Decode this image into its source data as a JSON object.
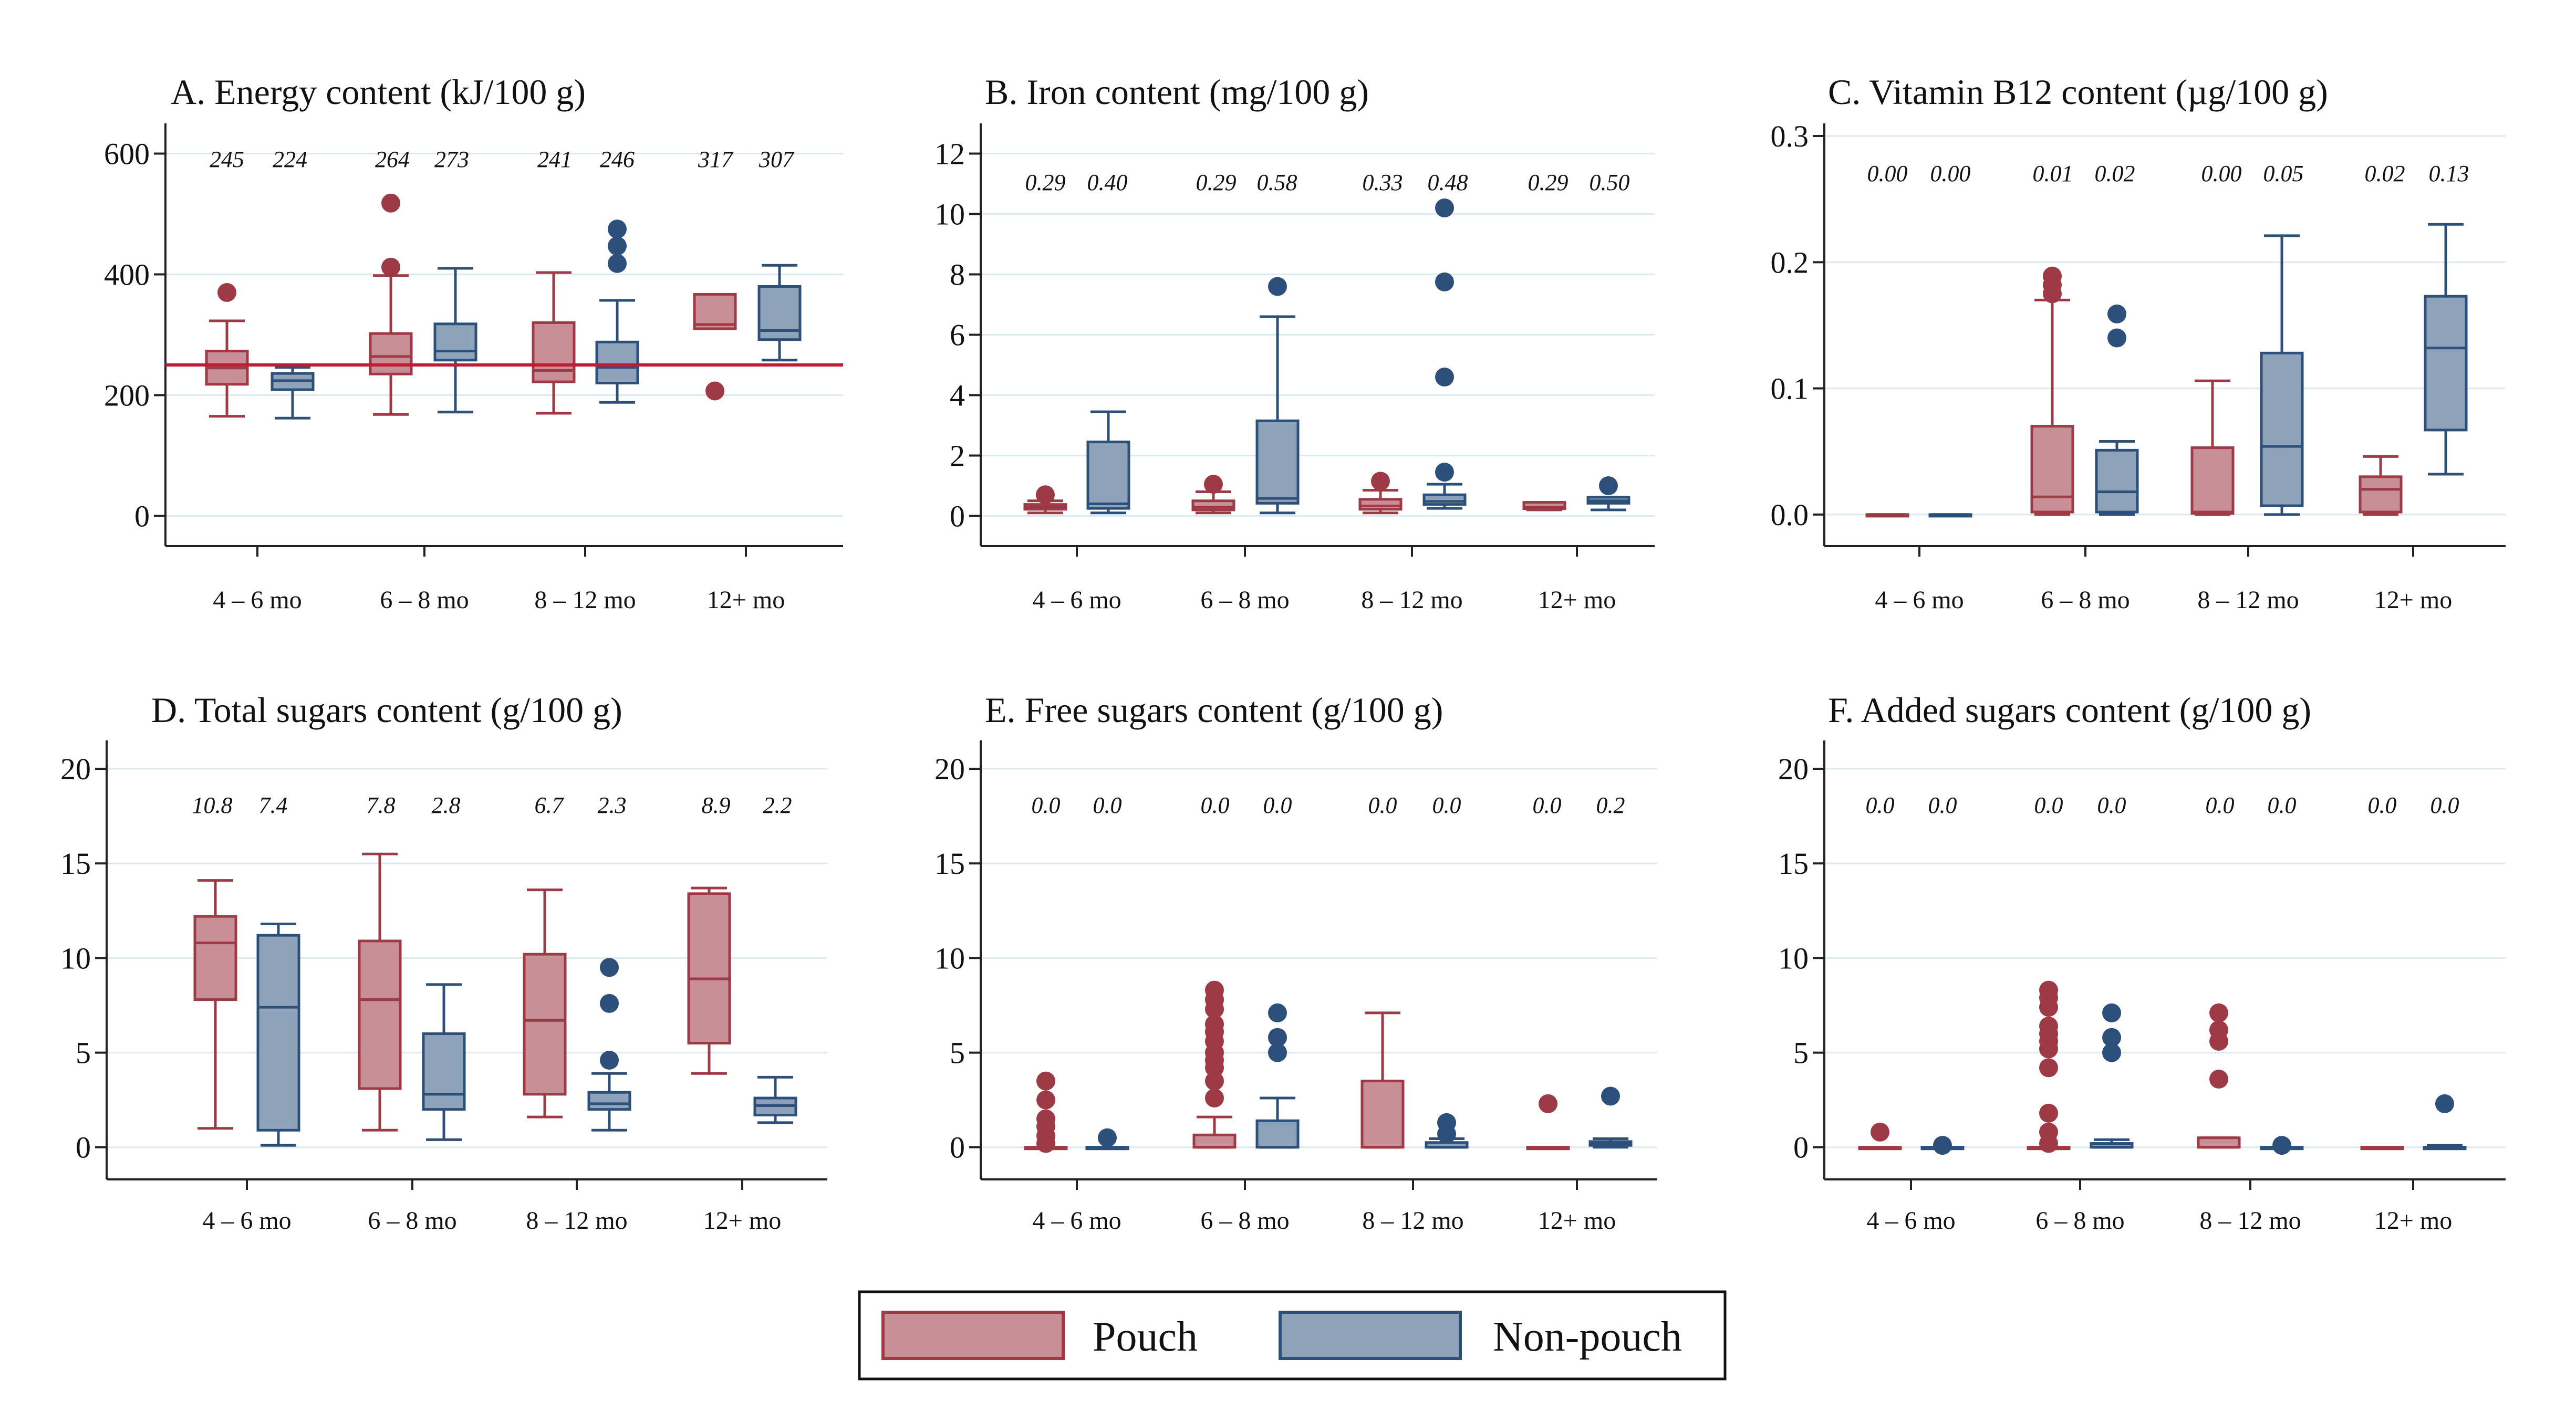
{
  "colors": {
    "pouch_fill": "#c88f96",
    "pouch_line": "#9e3a45",
    "nonpouch_fill": "#8ea3ba",
    "nonpouch_line": "#2c5079",
    "reference_line": "#c11a33"
  },
  "legend": {
    "pouch": "Pouch",
    "nonpouch": "Non-pouch"
  },
  "chart_data": [
    {
      "type": "box",
      "title": "A. Energy content (kJ/100 g)",
      "categories": [
        "4 – 6 mo",
        "6 – 8 mo",
        "8 – 12 mo",
        "12+ mo"
      ],
      "ylim": [
        -50,
        650
      ],
      "yticks": [
        0,
        200,
        400,
        600
      ],
      "ytick_labels": [
        "0",
        "200",
        "400",
        "600"
      ],
      "reference_line": 250,
      "median_labels": [
        "245",
        "224",
        "264",
        "273",
        "241",
        "246",
        "317",
        "307"
      ],
      "series": [
        {
          "name": "Pouch",
          "boxes": [
            {
              "low": 165,
              "q1": 218,
              "med": 245,
              "q3": 273,
              "high": 323,
              "outliers": [
                370
              ]
            },
            {
              "low": 168,
              "q1": 235,
              "med": 264,
              "q3": 302,
              "high": 398,
              "outliers": [
                412,
                518
              ]
            },
            {
              "low": 170,
              "q1": 222,
              "med": 241,
              "q3": 320,
              "high": 403,
              "outliers": []
            },
            {
              "low": 310,
              "q1": 310,
              "med": 317,
              "q3": 367,
              "high": 367,
              "outliers": [
                207
              ]
            }
          ]
        },
        {
          "name": "Non-pouch",
          "boxes": [
            {
              "low": 162,
              "q1": 209,
              "med": 224,
              "q3": 236,
              "high": 246,
              "outliers": []
            },
            {
              "low": 172,
              "q1": 258,
              "med": 273,
              "q3": 318,
              "high": 410,
              "outliers": []
            },
            {
              "low": 188,
              "q1": 220,
              "med": 246,
              "q3": 288,
              "high": 357,
              "outliers": [
                418,
                447,
                475
              ]
            },
            {
              "low": 258,
              "q1": 292,
              "med": 307,
              "q3": 380,
              "high": 415,
              "outliers": []
            }
          ]
        }
      ]
    },
    {
      "type": "box",
      "title": "B. Iron content (mg/100 g)",
      "categories": [
        "4 – 6 mo",
        "6 – 8 mo",
        "8 – 12 mo",
        "12+ mo"
      ],
      "ylim": [
        -1,
        13
      ],
      "yticks": [
        0,
        2,
        4,
        6,
        8,
        10,
        12
      ],
      "ytick_labels": [
        "0",
        "2",
        "4",
        "6",
        "8",
        "10",
        "12"
      ],
      "median_labels": [
        "0.29",
        "0.40",
        "0.29",
        "0.58",
        "0.33",
        "0.48",
        "0.29",
        "0.50"
      ],
      "series": [
        {
          "name": "Pouch",
          "boxes": [
            {
              "low": 0.1,
              "q1": 0.22,
              "med": 0.29,
              "q3": 0.38,
              "high": 0.5,
              "outliers": [
                0.7
              ]
            },
            {
              "low": 0.1,
              "q1": 0.2,
              "med": 0.29,
              "q3": 0.5,
              "high": 0.8,
              "outliers": [
                1.05
              ]
            },
            {
              "low": 0.1,
              "q1": 0.22,
              "med": 0.33,
              "q3": 0.55,
              "high": 0.85,
              "outliers": [
                1.15
              ]
            },
            {
              "low": 0.2,
              "q1": 0.24,
              "med": 0.29,
              "q3": 0.45,
              "high": 0.45,
              "outliers": []
            }
          ]
        },
        {
          "name": "Non-pouch",
          "boxes": [
            {
              "low": 0.1,
              "q1": 0.25,
              "med": 0.4,
              "q3": 2.45,
              "high": 3.45,
              "outliers": []
            },
            {
              "low": 0.1,
              "q1": 0.42,
              "med": 0.58,
              "q3": 3.15,
              "high": 6.6,
              "outliers": [
                7.6
              ]
            },
            {
              "low": 0.25,
              "q1": 0.38,
              "med": 0.48,
              "q3": 0.7,
              "high": 1.05,
              "outliers": [
                1.45,
                4.6,
                7.75,
                10.2
              ]
            },
            {
              "low": 0.2,
              "q1": 0.42,
              "med": 0.5,
              "q3": 0.62,
              "high": 0.62,
              "outliers": [
                1.0
              ]
            }
          ]
        }
      ]
    },
    {
      "type": "box",
      "title": "C. Vitamin B12 content (µg/100 g)",
      "categories": [
        "4 – 6 mo",
        "6 – 8 mo",
        "8 – 12 mo",
        "12+ mo"
      ],
      "ylim": [
        -0.025,
        0.31
      ],
      "yticks": [
        0,
        0.1,
        0.2,
        0.3
      ],
      "ytick_labels": [
        "0.0",
        "0.1",
        "0.2",
        "0.3"
      ],
      "median_labels": [
        "0.00",
        "0.00",
        "0.01",
        "0.02",
        "0.00",
        "0.05",
        "0.02",
        "0.13"
      ],
      "series": [
        {
          "name": "Pouch",
          "boxes": [
            {
              "low": 0,
              "q1": 0,
              "med": 0,
              "q3": 0,
              "high": 0,
              "outliers": []
            },
            {
              "low": 0,
              "q1": 0.002,
              "med": 0.014,
              "q3": 0.07,
              "high": 0.17,
              "outliers": [
                0.175,
                0.182,
                0.189
              ]
            },
            {
              "low": 0,
              "q1": 0.001,
              "med": 0.002,
              "q3": 0.053,
              "high": 0.106,
              "outliers": []
            },
            {
              "low": 0,
              "q1": 0.002,
              "med": 0.02,
              "q3": 0.03,
              "high": 0.046,
              "outliers": []
            }
          ]
        },
        {
          "name": "Non-pouch",
          "boxes": [
            {
              "low": 0,
              "q1": 0,
              "med": 0,
              "q3": 0,
              "high": 0,
              "outliers": []
            },
            {
              "low": 0,
              "q1": 0.002,
              "med": 0.018,
              "q3": 0.051,
              "high": 0.058,
              "outliers": [
                0.14,
                0.159
              ]
            },
            {
              "low": 0,
              "q1": 0.007,
              "med": 0.054,
              "q3": 0.128,
              "high": 0.221,
              "outliers": []
            },
            {
              "low": 0.032,
              "q1": 0.067,
              "med": 0.132,
              "q3": 0.173,
              "high": 0.23,
              "outliers": []
            }
          ]
        }
      ]
    },
    {
      "type": "box",
      "title": "D. Total sugars content (g/100 g)",
      "categories": [
        "4 – 6 mo",
        "6 – 8 mo",
        "8 – 12 mo",
        "12+ mo"
      ],
      "ylim": [
        -1.7,
        21.5
      ],
      "yticks": [
        0,
        5,
        10,
        15,
        20
      ],
      "ytick_labels": [
        "0",
        "5",
        "10",
        "15",
        "20"
      ],
      "median_labels": [
        "10.8",
        "7.4",
        "7.8",
        "2.8",
        "6.7",
        "2.3",
        "8.9",
        "2.2"
      ],
      "series": [
        {
          "name": "Pouch",
          "boxes": [
            {
              "low": 1.0,
              "q1": 7.8,
              "med": 10.8,
              "q3": 12.2,
              "high": 14.1,
              "outliers": []
            },
            {
              "low": 0.9,
              "q1": 3.1,
              "med": 7.8,
              "q3": 10.9,
              "high": 15.5,
              "outliers": []
            },
            {
              "low": 1.6,
              "q1": 2.8,
              "med": 6.7,
              "q3": 10.2,
              "high": 13.6,
              "outliers": []
            },
            {
              "low": 3.9,
              "q1": 5.5,
              "med": 8.9,
              "q3": 13.4,
              "high": 13.7,
              "outliers": []
            }
          ]
        },
        {
          "name": "Non-pouch",
          "boxes": [
            {
              "low": 0.1,
              "q1": 0.9,
              "med": 7.4,
              "q3": 11.2,
              "high": 11.8,
              "outliers": []
            },
            {
              "low": 0.4,
              "q1": 2.0,
              "med": 2.8,
              "q3": 6.0,
              "high": 8.6,
              "outliers": []
            },
            {
              "low": 0.9,
              "q1": 2.0,
              "med": 2.3,
              "q3": 2.9,
              "high": 3.9,
              "outliers": [
                4.6,
                7.6,
                9.5
              ]
            },
            {
              "low": 1.3,
              "q1": 1.7,
              "med": 2.2,
              "q3": 2.6,
              "high": 3.7,
              "outliers": []
            }
          ]
        }
      ]
    },
    {
      "type": "box",
      "title": "E. Free sugars content (g/100 g)",
      "categories": [
        "4 – 6 mo",
        "6 – 8 mo",
        "8 – 12 mo",
        "12+ mo"
      ],
      "ylim": [
        -1.7,
        21.5
      ],
      "yticks": [
        0,
        5,
        10,
        15,
        20
      ],
      "ytick_labels": [
        "0",
        "5",
        "10",
        "15",
        "20"
      ],
      "median_labels": [
        "0.0",
        "0.0",
        "0.0",
        "0.0",
        "0.0",
        "0.0",
        "0.0",
        "0.2"
      ],
      "series": [
        {
          "name": "Pouch",
          "boxes": [
            {
              "low": 0,
              "q1": 0,
              "med": 0,
              "q3": 0,
              "high": 0,
              "outliers": [
                0.2,
                0.6,
                1.1,
                1.5,
                2.5,
                3.5
              ]
            },
            {
              "low": 0,
              "q1": 0,
              "med": 0,
              "q3": 0.65,
              "high": 1.6,
              "outliers": [
                2.6,
                3.5,
                4.2,
                4.6,
                5.0,
                5.6,
                6.1,
                6.5,
                7.3,
                7.8,
                8.3
              ]
            },
            {
              "low": 0,
              "q1": 0,
              "med": 0,
              "q3": 3.5,
              "high": 7.1,
              "outliers": []
            },
            {
              "low": 0,
              "q1": 0,
              "med": 0,
              "q3": 0,
              "high": 0,
              "outliers": [
                2.3
              ]
            }
          ]
        },
        {
          "name": "Non-pouch",
          "boxes": [
            {
              "low": 0,
              "q1": 0,
              "med": 0,
              "q3": 0,
              "high": 0,
              "outliers": [
                0.5
              ]
            },
            {
              "low": 0,
              "q1": 0,
              "med": 0,
              "q3": 1.4,
              "high": 2.6,
              "outliers": [
                5.0,
                5.8,
                7.1
              ]
            },
            {
              "low": 0,
              "q1": 0,
              "med": 0,
              "q3": 0.25,
              "high": 0.45,
              "outliers": [
                0.7,
                1.3
              ]
            },
            {
              "low": 0,
              "q1": 0.1,
              "med": 0.2,
              "q3": 0.3,
              "high": 0.45,
              "outliers": [
                2.7
              ]
            }
          ]
        }
      ]
    },
    {
      "type": "box",
      "title": "F. Added sugars content (g/100 g)",
      "categories": [
        "4 – 6 mo",
        "6 – 8 mo",
        "8 – 12 mo",
        "12+ mo"
      ],
      "ylim": [
        -1.7,
        21.5
      ],
      "yticks": [
        0,
        5,
        10,
        15,
        20
      ],
      "ytick_labels": [
        "0",
        "5",
        "10",
        "15",
        "20"
      ],
      "median_labels": [
        "0.0",
        "0.0",
        "0.0",
        "0.0",
        "0.0",
        "0.0",
        "0.0",
        "0.0"
      ],
      "series": [
        {
          "name": "Pouch",
          "boxes": [
            {
              "low": 0,
              "q1": 0,
              "med": 0,
              "q3": 0,
              "high": 0,
              "outliers": [
                0.8
              ]
            },
            {
              "low": 0,
              "q1": 0,
              "med": 0,
              "q3": 0,
              "high": 0,
              "outliers": [
                0.2,
                0.8,
                1.8,
                4.2,
                5.2,
                5.6,
                6.0,
                6.4,
                7.4,
                7.9,
                8.3
              ]
            },
            {
              "low": 0,
              "q1": 0,
              "med": 0,
              "q3": 0.5,
              "high": 0.5,
              "outliers": [
                3.6,
                5.6,
                6.2,
                7.1
              ]
            },
            {
              "low": 0,
              "q1": 0,
              "med": 0,
              "q3": 0,
              "high": 0,
              "outliers": []
            }
          ]
        },
        {
          "name": "Non-pouch",
          "boxes": [
            {
              "low": 0,
              "q1": 0,
              "med": 0,
              "q3": 0,
              "high": 0,
              "outliers": [
                0.1
              ]
            },
            {
              "low": 0,
              "q1": 0,
              "med": 0,
              "q3": 0.2,
              "high": 0.4,
              "outliers": [
                5.0,
                5.8,
                7.1
              ]
            },
            {
              "low": 0,
              "q1": 0,
              "med": 0,
              "q3": 0,
              "high": 0,
              "outliers": [
                0.1
              ]
            },
            {
              "low": 0,
              "q1": 0,
              "med": 0,
              "q3": 0,
              "high": 0.1,
              "outliers": [
                2.3
              ]
            }
          ]
        }
      ]
    }
  ]
}
